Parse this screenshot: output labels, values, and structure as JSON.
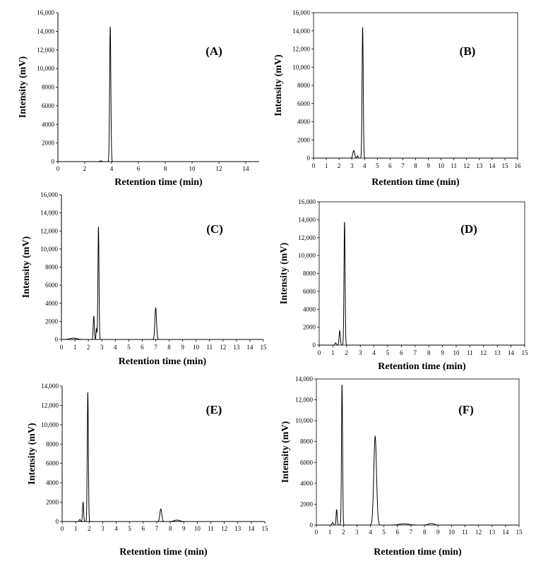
{
  "chart_data": [
    {
      "id": "A",
      "type": "line",
      "panel_label": "(A)",
      "xlabel": "Retention time (min)",
      "ylabel": "Intensity (mV)",
      "xlim": [
        0,
        15
      ],
      "ylim": [
        0,
        16000
      ],
      "frame": "left-bottom",
      "xticks": [
        0,
        2,
        4,
        6,
        8,
        10,
        12,
        14
      ],
      "yticks": [
        0,
        2000,
        4000,
        6000,
        8000,
        10000,
        12000,
        14000,
        16000
      ],
      "ytick_labels": [
        "0",
        "2000",
        "4000",
        "6000",
        "8000",
        "10,000",
        "12,000",
        "14,000",
        "16,000"
      ],
      "peaks": [
        {
          "rt": 3.2,
          "height": 70,
          "width": 0.08
        },
        {
          "rt": 3.9,
          "height": 14500,
          "width": 0.045
        }
      ]
    },
    {
      "id": "B",
      "type": "line",
      "panel_label": "(B)",
      "xlabel": "Retention time (min)",
      "ylabel": "Intensity (mV)",
      "xlim": [
        0,
        16
      ],
      "ylim": [
        0,
        16000
      ],
      "frame": "box",
      "xticks": [
        0,
        1,
        2,
        3,
        4,
        5,
        6,
        7,
        8,
        9,
        10,
        11,
        12,
        13,
        14,
        15,
        16
      ],
      "yticks": [
        0,
        2000,
        4000,
        6000,
        8000,
        10000,
        12000,
        14000,
        16000
      ],
      "ytick_labels": [
        "0",
        "2000",
        "4000",
        "6000",
        "8000",
        "10,000",
        "12,000",
        "14,000",
        "16,000"
      ],
      "peaks": [
        {
          "rt": 3.15,
          "height": 850,
          "width": 0.07
        },
        {
          "rt": 3.45,
          "height": 250,
          "width": 0.04
        },
        {
          "rt": 3.85,
          "height": 14400,
          "width": 0.045
        }
      ]
    },
    {
      "id": "C",
      "type": "line",
      "panel_label": "(C)",
      "xlabel": "Retention time (min)",
      "ylabel": "Intensity (mV)",
      "xlim": [
        0,
        15
      ],
      "ylim": [
        0,
        16000
      ],
      "frame": "left-bottom",
      "xticks": [
        0,
        1,
        2,
        3,
        4,
        5,
        6,
        7,
        8,
        9,
        10,
        11,
        12,
        13,
        14,
        15
      ],
      "yticks": [
        0,
        2000,
        4000,
        6000,
        8000,
        10000,
        12000,
        14000,
        16000
      ],
      "ytick_labels": [
        "0",
        "2000",
        "4000",
        "6000",
        "8000",
        "10,000",
        "12,000",
        "14,000",
        "16,000"
      ],
      "peaks": [
        {
          "rt": 0.9,
          "height": 150,
          "width": 0.25
        },
        {
          "rt": 2.4,
          "height": 2600,
          "width": 0.04
        },
        {
          "rt": 2.6,
          "height": 1200,
          "width": 0.03
        },
        {
          "rt": 2.75,
          "height": 12500,
          "width": 0.04
        },
        {
          "rt": 7.0,
          "height": 3500,
          "width": 0.06
        }
      ]
    },
    {
      "id": "D",
      "type": "line",
      "panel_label": "(D)",
      "xlabel": "Retention time (min)",
      "ylabel": "Intensity (mV)",
      "xlim": [
        0,
        15
      ],
      "ylim": [
        0,
        16000
      ],
      "frame": "box",
      "xticks": [
        0,
        1,
        2,
        3,
        4,
        5,
        6,
        7,
        8,
        9,
        10,
        11,
        12,
        13,
        14,
        15
      ],
      "yticks": [
        0,
        2000,
        4000,
        6000,
        8000,
        10000,
        12000,
        14000,
        16000
      ],
      "ytick_labels": [
        "0",
        "2000",
        "4000",
        "6000",
        "8000",
        "10,000",
        "12,000",
        "14,000",
        "16,000"
      ],
      "peaks": [
        {
          "rt": 1.2,
          "height": 250,
          "width": 0.05
        },
        {
          "rt": 1.5,
          "height": 1600,
          "width": 0.045
        },
        {
          "rt": 1.85,
          "height": 13800,
          "width": 0.04
        }
      ]
    },
    {
      "id": "E",
      "type": "line",
      "panel_label": "(E)",
      "xlabel": "Retention time (min)",
      "ylabel": "Intensity (mV)",
      "xlim": [
        0,
        15
      ],
      "ylim": [
        0,
        14000
      ],
      "frame": "left-bottom",
      "xticks": [
        0,
        1,
        2,
        3,
        4,
        5,
        6,
        7,
        8,
        9,
        10,
        11,
        12,
        13,
        14,
        15
      ],
      "yticks": [
        0,
        2000,
        4000,
        6000,
        8000,
        10000,
        12000,
        14000
      ],
      "ytick_labels": [
        "0",
        "2000",
        "4000",
        "6000",
        "8000",
        "10,000",
        "12,000",
        "14,000"
      ],
      "peaks": [
        {
          "rt": 1.3,
          "height": 200,
          "width": 0.05
        },
        {
          "rt": 1.55,
          "height": 2000,
          "width": 0.04
        },
        {
          "rt": 1.9,
          "height": 13400,
          "width": 0.04
        },
        {
          "rt": 7.3,
          "height": 1300,
          "width": 0.07
        },
        {
          "rt": 8.5,
          "height": 150,
          "width": 0.2
        }
      ]
    },
    {
      "id": "F",
      "type": "line",
      "panel_label": "(F)",
      "xlabel": "Retention time (min)",
      "ylabel": "Intensity (mV)",
      "xlim": [
        0,
        15
      ],
      "ylim": [
        0,
        14000
      ],
      "frame": "box",
      "xticks": [
        0,
        1,
        2,
        3,
        4,
        5,
        6,
        7,
        8,
        9,
        10,
        11,
        12,
        13,
        14,
        15
      ],
      "yticks": [
        0,
        2000,
        4000,
        6000,
        8000,
        10000,
        12000,
        14000
      ],
      "ytick_labels": [
        "0",
        "2000",
        "4000",
        "6000",
        "8000",
        "10,000",
        "12,000",
        "14,000"
      ],
      "peaks": [
        {
          "rt": 1.2,
          "height": 250,
          "width": 0.05
        },
        {
          "rt": 1.5,
          "height": 1500,
          "width": 0.04
        },
        {
          "rt": 1.9,
          "height": 13500,
          "width": 0.04
        },
        {
          "rt": 4.35,
          "height": 8500,
          "width": 0.1
        },
        {
          "rt": 6.5,
          "height": 120,
          "width": 0.35
        },
        {
          "rt": 8.5,
          "height": 150,
          "width": 0.2
        }
      ]
    }
  ]
}
